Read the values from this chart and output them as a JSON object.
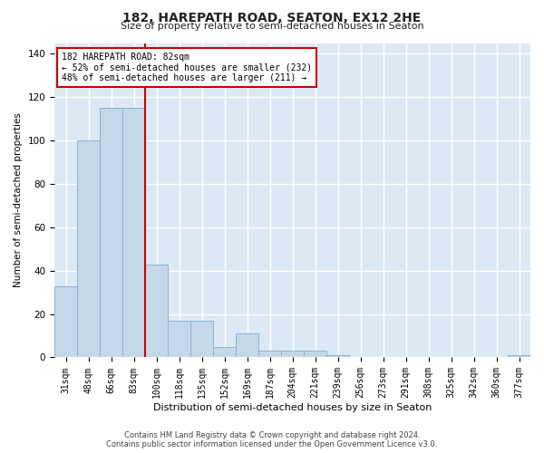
{
  "title": "182, HAREPATH ROAD, SEATON, EX12 2HE",
  "subtitle": "Size of property relative to semi-detached houses in Seaton",
  "xlabel": "Distribution of semi-detached houses by size in Seaton",
  "ylabel": "Number of semi-detached properties",
  "categories": [
    "31sqm",
    "48sqm",
    "66sqm",
    "83sqm",
    "100sqm",
    "118sqm",
    "135sqm",
    "152sqm",
    "169sqm",
    "187sqm",
    "204sqm",
    "221sqm",
    "239sqm",
    "256sqm",
    "273sqm",
    "291sqm",
    "308sqm",
    "325sqm",
    "342sqm",
    "360sqm",
    "377sqm"
  ],
  "values": [
    33,
    100,
    115,
    115,
    43,
    17,
    17,
    5,
    11,
    3,
    3,
    3,
    1,
    0,
    0,
    0,
    0,
    0,
    0,
    0,
    1
  ],
  "bar_color": "#c5d8ea",
  "bar_edge_color": "#89b4d0",
  "highlight_line_color": "#cc0000",
  "highlight_bar_index": 3,
  "property_label": "182 HAREPATH ROAD: 82sqm",
  "annotation_line1": "← 52% of semi-detached houses are smaller (232)",
  "annotation_line2": "48% of semi-detached houses are larger (211) →",
  "annotation_box_color": "#cc0000",
  "ylim": [
    0,
    145
  ],
  "yticks": [
    0,
    20,
    40,
    60,
    80,
    100,
    120,
    140
  ],
  "background_color": "#dce9f5",
  "grid_color": "#ffffff",
  "footer_line1": "Contains HM Land Registry data © Crown copyright and database right 2024.",
  "footer_line2": "Contains public sector information licensed under the Open Government Licence v3.0."
}
